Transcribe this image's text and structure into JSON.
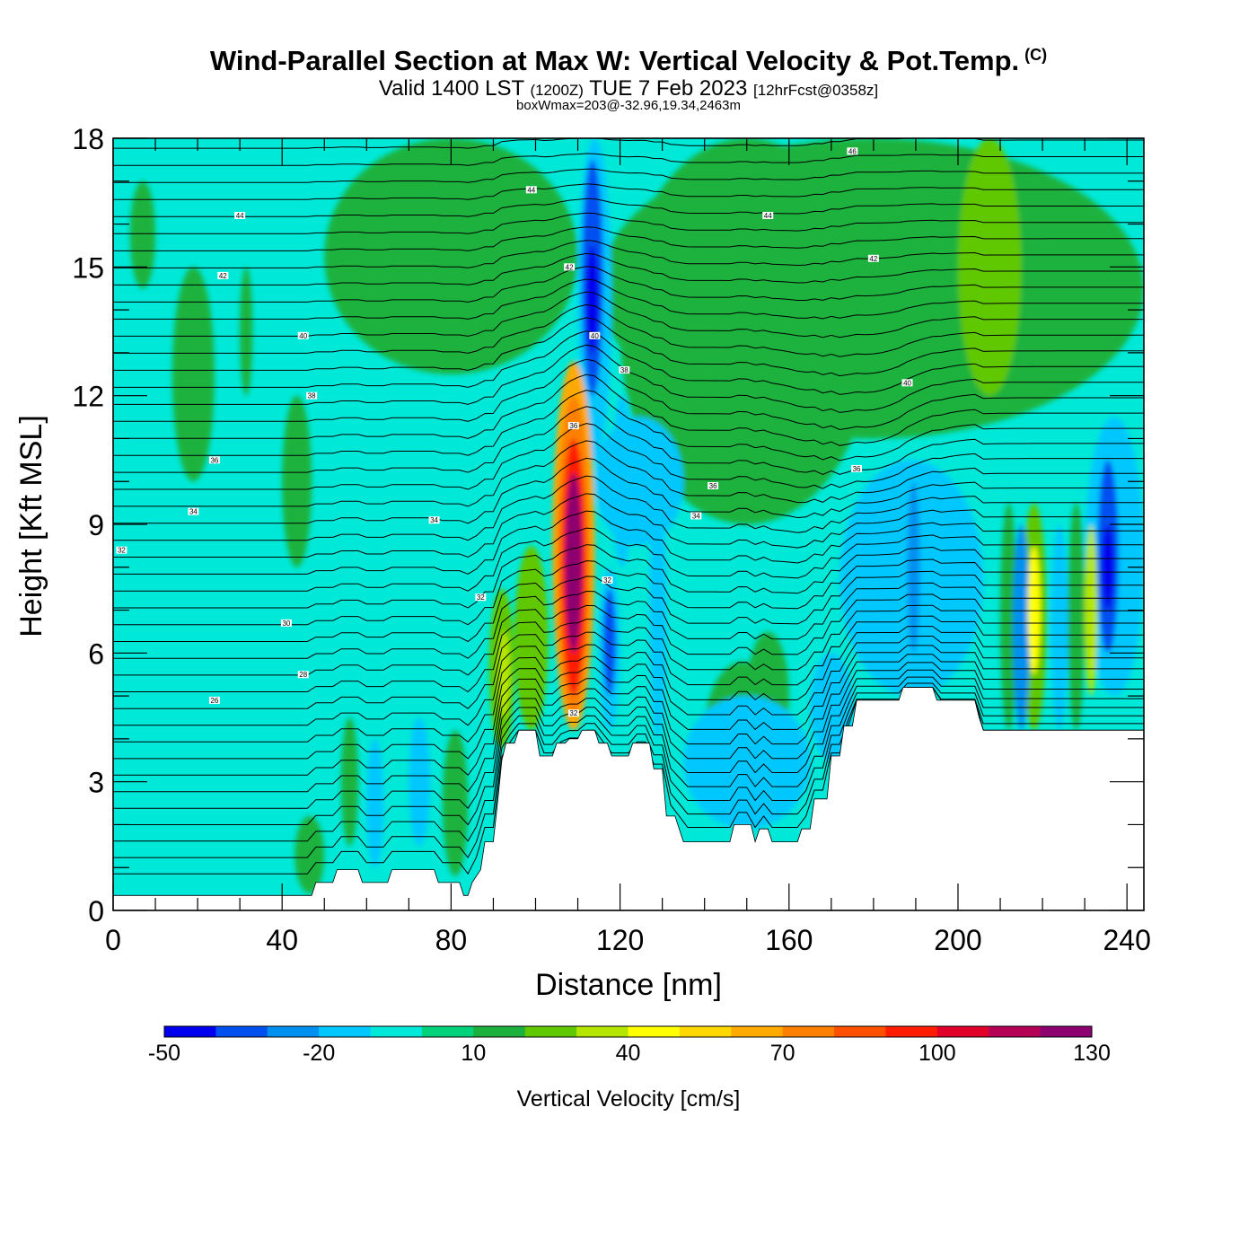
{
  "header": {
    "title": "Wind-Parallel Section at Max W: Vertical Velocity & Pot.Temp.",
    "copyright": "(C)",
    "valid_prefix": "Valid 1400 LST",
    "valid_utc": "(1200Z)",
    "valid_date": "TUE 7 Feb 2023",
    "forecast": "[12hrFcst@0358z]",
    "box_wmax": "boxWmax=203@-32.96,19.34,2463m"
  },
  "chart_data": {
    "type": "heatmap",
    "xlabel": "Distance [nm]",
    "ylabel": "Height [Kft MSL]",
    "xlim": [
      0,
      244
    ],
    "ylim": [
      0,
      18
    ],
    "x_ticks": [
      0,
      40,
      80,
      120,
      160,
      200,
      240
    ],
    "y_ticks": [
      0,
      3,
      6,
      9,
      12,
      15,
      18
    ],
    "colorbar": {
      "label": "Vertical Velocity [cm/s]",
      "levels": [
        -50,
        -40,
        -30,
        -20,
        -10,
        0,
        10,
        20,
        30,
        40,
        50,
        60,
        70,
        80,
        90,
        100,
        110,
        120,
        130,
        140,
        150
      ],
      "tick_labels": [
        "-50",
        "-20",
        "10",
        "40",
        "70",
        "100",
        "130"
      ],
      "colors": [
        "#0000ee",
        "#0050f0",
        "#0090f0",
        "#00c8ff",
        "#00e8d8",
        "#00d27c",
        "#1ab23c",
        "#60c800",
        "#b4e600",
        "#ffff00",
        "#ffd800",
        "#ffaa00",
        "#ff8000",
        "#ff5000",
        "#ff1c00",
        "#e0002a",
        "#b40055",
        "#8c0070"
      ]
    },
    "terrain_kft": [
      [
        0,
        0.35
      ],
      [
        10,
        0.35
      ],
      [
        45,
        0.35
      ],
      [
        47,
        0.35
      ],
      [
        48,
        0.65
      ],
      [
        52,
        0.65
      ],
      [
        53,
        0.95
      ],
      [
        58,
        0.95
      ],
      [
        59,
        0.65
      ],
      [
        65,
        0.65
      ],
      [
        66,
        0.95
      ],
      [
        76,
        0.95
      ],
      [
        77,
        0.65
      ],
      [
        82,
        0.65
      ],
      [
        83,
        0.35
      ],
      [
        84,
        0.35
      ],
      [
        85,
        0.65
      ],
      [
        87,
        0.95
      ],
      [
        88,
        1.6
      ],
      [
        90,
        1.6
      ],
      [
        91,
        2.5
      ],
      [
        92,
        3.5
      ],
      [
        93,
        3.9
      ],
      [
        95,
        3.9
      ],
      [
        96,
        4.2
      ],
      [
        100,
        4.2
      ],
      [
        101,
        3.6
      ],
      [
        104,
        3.6
      ],
      [
        105,
        3.9
      ],
      [
        107,
        3.9
      ],
      [
        108,
        4.0
      ],
      [
        110,
        4.0
      ],
      [
        111,
        4.2
      ],
      [
        114,
        4.2
      ],
      [
        115,
        3.9
      ],
      [
        117,
        3.9
      ],
      [
        118,
        3.6
      ],
      [
        122,
        3.6
      ],
      [
        123,
        3.9
      ],
      [
        127,
        3.9
      ],
      [
        128,
        3.3
      ],
      [
        130,
        3.3
      ],
      [
        131,
        2.2
      ],
      [
        133,
        2.2
      ],
      [
        134,
        1.9
      ],
      [
        135,
        1.6
      ],
      [
        146,
        1.6
      ],
      [
        147,
        2.0
      ],
      [
        151,
        2.0
      ],
      [
        152,
        1.6
      ],
      [
        153,
        1.9
      ],
      [
        155,
        1.9
      ],
      [
        156,
        1.6
      ],
      [
        162,
        1.6
      ],
      [
        163,
        1.9
      ],
      [
        165,
        1.9
      ],
      [
        166,
        2.6
      ],
      [
        169,
        2.6
      ],
      [
        170,
        3.6
      ],
      [
        172,
        3.6
      ],
      [
        173,
        4.3
      ],
      [
        175,
        4.3
      ],
      [
        176,
        4.9
      ],
      [
        186,
        4.9
      ],
      [
        187,
        5.2
      ],
      [
        194,
        5.2
      ],
      [
        195,
        4.9
      ],
      [
        204,
        4.9
      ],
      [
        205,
        4.5
      ],
      [
        206,
        4.2
      ],
      [
        244,
        4.2
      ]
    ],
    "w_cells": [
      {
        "x0": 104,
        "x1": 114,
        "y0": 4.2,
        "y1": 12.8,
        "w": 60
      },
      {
        "x0": 105,
        "x1": 113,
        "y0": 4.5,
        "y1": 12.0,
        "w": 75
      },
      {
        "x0": 106,
        "x1": 112,
        "y0": 5.0,
        "y1": 11.0,
        "w": 95
      },
      {
        "x0": 107,
        "x1": 111,
        "y0": 6.0,
        "y1": 10.2,
        "w": 120
      },
      {
        "x0": 107.8,
        "x1": 110.2,
        "y0": 7.0,
        "y1": 9.0,
        "w": 140
      },
      {
        "x0": 110,
        "x1": 118,
        "y0": 10.5,
        "y1": 18.0,
        "w": -20
      },
      {
        "x0": 111,
        "x1": 116,
        "y0": 12.0,
        "y1": 17.5,
        "w": -35
      },
      {
        "x0": 111.8,
        "x1": 115,
        "y0": 13.0,
        "y1": 15.5,
        "w": -48
      },
      {
        "x0": 115,
        "x1": 120,
        "y0": 4.2,
        "y1": 8.0,
        "w": -20
      },
      {
        "x0": 116,
        "x1": 119,
        "y0": 5.0,
        "y1": 7.5,
        "w": -35
      },
      {
        "x0": 127,
        "x1": 131,
        "y0": 4.0,
        "y1": 10.0,
        "w": -20
      },
      {
        "x0": 95,
        "x1": 103,
        "y0": 4.2,
        "y1": 8.5,
        "w": 20
      },
      {
        "x0": 89,
        "x1": 95,
        "y0": 3.8,
        "y1": 7.5,
        "w": 20
      },
      {
        "x0": 91,
        "x1": 94,
        "y0": 4.5,
        "y1": 6.5,
        "w": 30
      },
      {
        "x0": 70,
        "x1": 75,
        "y0": 1.5,
        "y1": 4.5,
        "w": -20
      },
      {
        "x0": 78,
        "x1": 84,
        "y0": 0.8,
        "y1": 4.2,
        "w": 12
      },
      {
        "x0": 43,
        "x1": 50,
        "y0": 0.4,
        "y1": 2.2,
        "w": 15
      },
      {
        "x0": 135,
        "x1": 165,
        "y0": 1.9,
        "y1": 5.0,
        "w": -20
      },
      {
        "x0": 140,
        "x1": 158,
        "y0": 2.5,
        "y1": 5.8,
        "w": 12
      },
      {
        "x0": 150,
        "x1": 160,
        "y0": 3.5,
        "y1": 6.5,
        "w": 12
      },
      {
        "x0": 165,
        "x1": 175,
        "y0": 3.5,
        "y1": 6.0,
        "w": -20
      },
      {
        "x0": 172,
        "x1": 206,
        "y0": 5.0,
        "y1": 10.5,
        "w": -20
      },
      {
        "x0": 188,
        "x1": 191,
        "y0": 6.0,
        "y1": 10.0,
        "w": -30
      },
      {
        "x0": 210,
        "x1": 214,
        "y0": 4.2,
        "y1": 9.5,
        "w": 15
      },
      {
        "x0": 213,
        "x1": 217,
        "y0": 4.2,
        "y1": 9.0,
        "w": -30
      },
      {
        "x0": 215,
        "x1": 221,
        "y0": 4.2,
        "y1": 9.5,
        "w": 25
      },
      {
        "x0": 216.5,
        "x1": 219.5,
        "y0": 5.5,
        "y1": 8.5,
        "w": 45
      },
      {
        "x0": 222,
        "x1": 226,
        "y0": 4.2,
        "y1": 9.0,
        "w": -20
      },
      {
        "x0": 226,
        "x1": 230,
        "y0": 4.2,
        "y1": 9.5,
        "w": 15
      },
      {
        "x0": 230,
        "x1": 233,
        "y0": 5.0,
        "y1": 9.0,
        "w": 30
      },
      {
        "x0": 230,
        "x1": 244,
        "y0": 5.0,
        "y1": 11.5,
        "w": -20
      },
      {
        "x0": 233,
        "x1": 238,
        "y0": 6.0,
        "y1": 10.5,
        "w": -35
      },
      {
        "x0": 234,
        "x1": 237,
        "y0": 7.0,
        "y1": 9.0,
        "w": -45
      },
      {
        "x0": 115,
        "x1": 244,
        "y0": 11.0,
        "y1": 18.0,
        "w": 12
      },
      {
        "x0": 120,
        "x1": 180,
        "y0": 9.0,
        "y1": 18.0,
        "w": 12
      },
      {
        "x0": 50,
        "x1": 110,
        "y0": 12.5,
        "y1": 18.0,
        "w": 12
      },
      {
        "x0": 200,
        "x1": 215,
        "y0": 12.0,
        "y1": 18.0,
        "w": 25
      },
      {
        "x0": 4,
        "x1": 10,
        "y0": 14.5,
        "y1": 17.0,
        "w": 12
      },
      {
        "x0": 14,
        "x1": 24,
        "y0": 10.0,
        "y1": 15.0,
        "w": 12
      },
      {
        "x0": 40,
        "x1": 47,
        "y0": 8.0,
        "y1": 12.0,
        "w": 12
      },
      {
        "x0": 30,
        "x1": 33,
        "y0": 12.0,
        "y1": 15.0,
        "w": 12
      },
      {
        "x0": 118,
        "x1": 123,
        "y0": 8.0,
        "y1": 12.0,
        "w": -20
      },
      {
        "x0": 114,
        "x1": 135,
        "y0": 8.5,
        "y1": 11.5,
        "w": -20
      },
      {
        "x0": 54,
        "x1": 58,
        "y0": 1.5,
        "y1": 4.5,
        "w": 12
      },
      {
        "x0": 60,
        "x1": 64,
        "y0": 1.0,
        "y1": 4.0,
        "w": -20
      }
    ],
    "theta_levels": [
      24,
      26,
      28,
      30,
      32,
      34,
      36,
      38,
      40,
      42,
      44,
      46
    ],
    "theta_labels": [
      {
        "x": 24,
        "y": 4.9,
        "text": "26"
      },
      {
        "x": 45,
        "y": 5.5,
        "text": "28"
      },
      {
        "x": 41,
        "y": 6.7,
        "text": "30"
      },
      {
        "x": 2,
        "y": 8.4,
        "text": "32"
      },
      {
        "x": 87,
        "y": 7.3,
        "text": "32"
      },
      {
        "x": 117,
        "y": 7.7,
        "text": "32"
      },
      {
        "x": 109,
        "y": 4.6,
        "text": "32"
      },
      {
        "x": 19,
        "y": 9.3,
        "text": "34"
      },
      {
        "x": 76,
        "y": 9.1,
        "text": "34"
      },
      {
        "x": 138,
        "y": 9.2,
        "text": "34"
      },
      {
        "x": 24,
        "y": 10.5,
        "text": "36"
      },
      {
        "x": 142,
        "y": 9.9,
        "text": "36"
      },
      {
        "x": 176,
        "y": 10.3,
        "text": "36"
      },
      {
        "x": 109,
        "y": 11.3,
        "text": "36"
      },
      {
        "x": 47,
        "y": 12.0,
        "text": "38"
      },
      {
        "x": 121,
        "y": 12.6,
        "text": "38"
      },
      {
        "x": 45,
        "y": 13.4,
        "text": "40"
      },
      {
        "x": 114,
        "y": 13.4,
        "text": "40"
      },
      {
        "x": 188,
        "y": 12.3,
        "text": "40"
      },
      {
        "x": 26,
        "y": 14.8,
        "text": "42"
      },
      {
        "x": 108,
        "y": 15.0,
        "text": "42"
      },
      {
        "x": 180,
        "y": 15.2,
        "text": "42"
      },
      {
        "x": 30,
        "y": 16.2,
        "text": "44"
      },
      {
        "x": 99,
        "y": 16.8,
        "text": "44"
      },
      {
        "x": 155,
        "y": 16.2,
        "text": "44"
      },
      {
        "x": 175,
        "y": 17.7,
        "text": "46"
      }
    ]
  }
}
